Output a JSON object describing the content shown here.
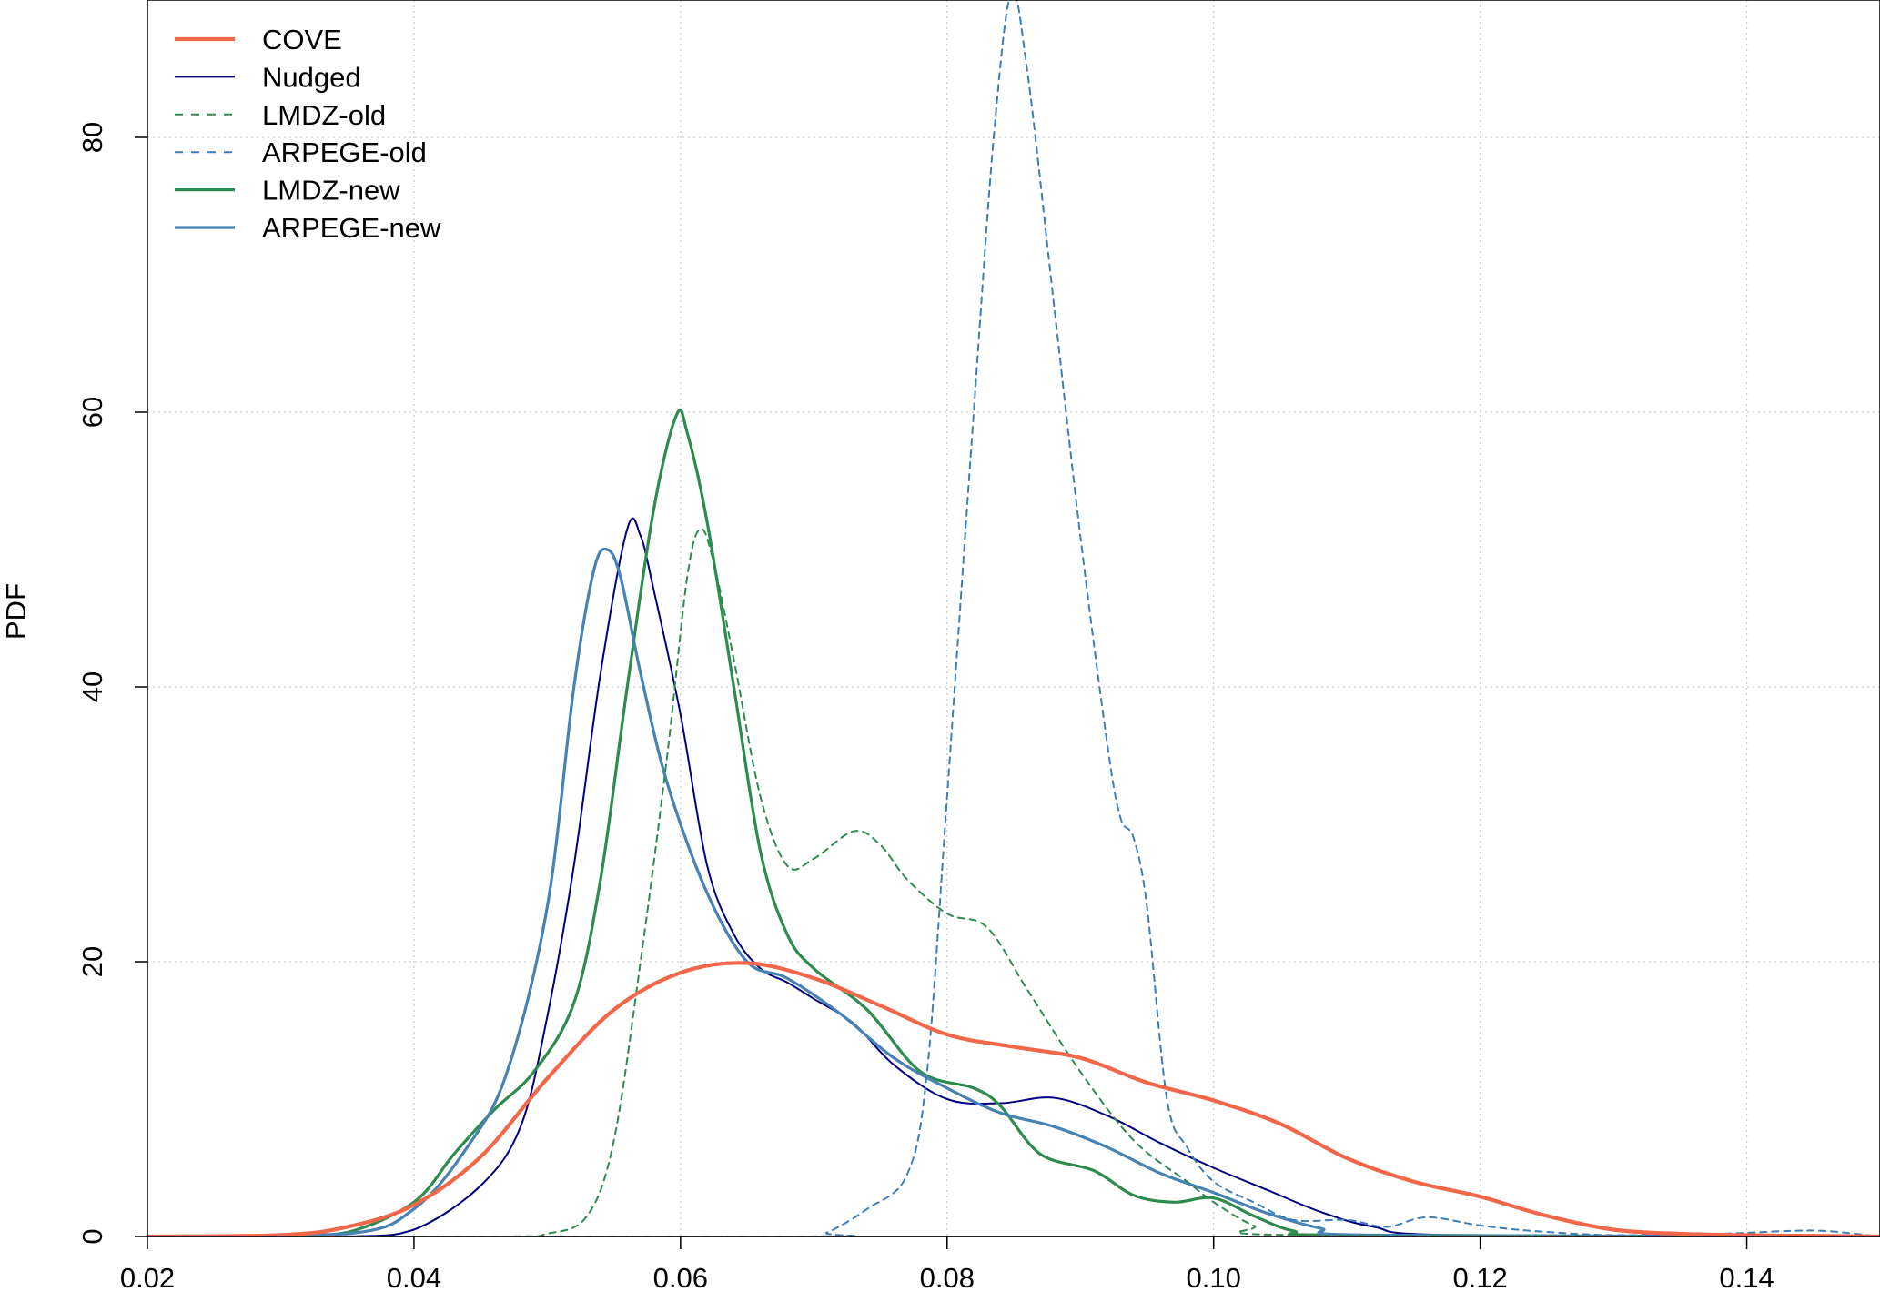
{
  "chart_data": {
    "type": "line",
    "title": "",
    "xlabel": "",
    "ylabel": "PDF",
    "xlim": [
      0.02,
      0.15
    ],
    "ylim": [
      0,
      90
    ],
    "x_ticks": [
      0.02,
      0.04,
      0.06,
      0.08,
      0.1,
      0.12,
      0.14
    ],
    "x_tick_labels": [
      "0.02",
      "0.04",
      "0.06",
      "0.08",
      "0.10",
      "0.12",
      "0.14"
    ],
    "y_ticks": [
      0,
      20,
      40,
      60,
      80
    ],
    "y_tick_labels": [
      "0",
      "20",
      "40",
      "60",
      "80"
    ],
    "grid": true,
    "legend_position": "top-left",
    "series": [
      {
        "name": "COVE",
        "color": "#F2674A",
        "style": "solid",
        "weight": "thick",
        "points": [
          [
            0.02,
            0
          ],
          [
            0.03,
            0.1
          ],
          [
            0.035,
            0.7
          ],
          [
            0.04,
            2.3
          ],
          [
            0.045,
            5.8
          ],
          [
            0.05,
            11.5
          ],
          [
            0.055,
            16.5
          ],
          [
            0.06,
            19.2
          ],
          [
            0.065,
            19.9
          ],
          [
            0.07,
            18.8
          ],
          [
            0.075,
            16.8
          ],
          [
            0.08,
            14.7
          ],
          [
            0.085,
            13.8
          ],
          [
            0.09,
            13.0
          ],
          [
            0.095,
            11.2
          ],
          [
            0.1,
            9.9
          ],
          [
            0.105,
            8.2
          ],
          [
            0.11,
            5.7
          ],
          [
            0.115,
            4.0
          ],
          [
            0.12,
            2.9
          ],
          [
            0.125,
            1.5
          ],
          [
            0.13,
            0.5
          ],
          [
            0.135,
            0.2
          ],
          [
            0.14,
            0.1
          ],
          [
            0.145,
            0.05
          ],
          [
            0.15,
            0
          ]
        ]
      },
      {
        "name": "Nudged",
        "color": "#00007F",
        "style": "solid",
        "weight": "thin",
        "points": [
          [
            0.02,
            0
          ],
          [
            0.035,
            0
          ],
          [
            0.04,
            0.5
          ],
          [
            0.045,
            3.7
          ],
          [
            0.048,
            8.0
          ],
          [
            0.05,
            16.0
          ],
          [
            0.052,
            27.0
          ],
          [
            0.054,
            41.0
          ],
          [
            0.056,
            51.5
          ],
          [
            0.057,
            51.0
          ],
          [
            0.058,
            47.0
          ],
          [
            0.06,
            38.0
          ],
          [
            0.062,
            27.0
          ],
          [
            0.064,
            22.0
          ],
          [
            0.066,
            19.5
          ],
          [
            0.068,
            18.5
          ],
          [
            0.07,
            17.3
          ],
          [
            0.073,
            15.5
          ],
          [
            0.076,
            12.5
          ],
          [
            0.08,
            10.0
          ],
          [
            0.084,
            9.7
          ],
          [
            0.088,
            10.1
          ],
          [
            0.092,
            8.8
          ],
          [
            0.096,
            6.8
          ],
          [
            0.1,
            5.0
          ],
          [
            0.104,
            3.4
          ],
          [
            0.108,
            1.8
          ],
          [
            0.112,
            0.7
          ],
          [
            0.118,
            0.1
          ],
          [
            0.15,
            0
          ]
        ]
      },
      {
        "name": "LMDZ-old",
        "color": "#2E8B4E",
        "style": "dashed",
        "weight": "thin",
        "points": [
          [
            0.02,
            0
          ],
          [
            0.046,
            0
          ],
          [
            0.05,
            0.2
          ],
          [
            0.053,
            1.5
          ],
          [
            0.055,
            7.0
          ],
          [
            0.057,
            20.0
          ],
          [
            0.059,
            35.0
          ],
          [
            0.0605,
            48.0
          ],
          [
            0.0615,
            51.5
          ],
          [
            0.0625,
            49.0
          ],
          [
            0.064,
            42.0
          ],
          [
            0.066,
            32.0
          ],
          [
            0.068,
            27.0
          ],
          [
            0.07,
            27.5
          ],
          [
            0.073,
            29.5
          ],
          [
            0.075,
            28.5
          ],
          [
            0.077,
            26.0
          ],
          [
            0.08,
            23.5
          ],
          [
            0.083,
            22.5
          ],
          [
            0.086,
            18.0
          ],
          [
            0.09,
            12.0
          ],
          [
            0.094,
            7.0
          ],
          [
            0.098,
            4.0
          ],
          [
            0.1,
            2.5
          ],
          [
            0.103,
            0.8
          ],
          [
            0.106,
            0.1
          ],
          [
            0.15,
            0
          ]
        ]
      },
      {
        "name": "ARPEGE-old",
        "color": "#3E7EB8",
        "style": "dashed",
        "weight": "thin",
        "points": [
          [
            0.02,
            0
          ],
          [
            0.069,
            0
          ],
          [
            0.071,
            0.3
          ],
          [
            0.074,
            2.0
          ],
          [
            0.077,
            4.5
          ],
          [
            0.0785,
            12.0
          ],
          [
            0.08,
            32.0
          ],
          [
            0.082,
            60.0
          ],
          [
            0.0835,
            80.0
          ],
          [
            0.0848,
            90.5
          ],
          [
            0.086,
            85.0
          ],
          [
            0.088,
            68.0
          ],
          [
            0.09,
            51.0
          ],
          [
            0.092,
            36.0
          ],
          [
            0.093,
            30.5
          ],
          [
            0.094,
            29.0
          ],
          [
            0.095,
            24.0
          ],
          [
            0.0965,
            10.0
          ],
          [
            0.098,
            6.5
          ],
          [
            0.1,
            4.0
          ],
          [
            0.103,
            2.5
          ],
          [
            0.106,
            1.2
          ],
          [
            0.11,
            1.2
          ],
          [
            0.113,
            0.7
          ],
          [
            0.116,
            1.4
          ],
          [
            0.12,
            0.8
          ],
          [
            0.124,
            0.4
          ],
          [
            0.13,
            0.1
          ],
          [
            0.138,
            0.2
          ],
          [
            0.143,
            0.4
          ],
          [
            0.146,
            0.4
          ],
          [
            0.15,
            0
          ]
        ]
      },
      {
        "name": "LMDZ-new",
        "color": "#2E8B4E",
        "style": "solid",
        "weight": "medium",
        "points": [
          [
            0.02,
            0
          ],
          [
            0.03,
            0
          ],
          [
            0.035,
            0.3
          ],
          [
            0.04,
            2.5
          ],
          [
            0.043,
            6.0
          ],
          [
            0.046,
            9.2
          ],
          [
            0.049,
            12.0
          ],
          [
            0.052,
            17.0
          ],
          [
            0.054,
            26.0
          ],
          [
            0.056,
            40.0
          ],
          [
            0.058,
            53.0
          ],
          [
            0.0597,
            59.8
          ],
          [
            0.0605,
            58.5
          ],
          [
            0.062,
            52.0
          ],
          [
            0.064,
            40.0
          ],
          [
            0.066,
            28.0
          ],
          [
            0.068,
            22.0
          ],
          [
            0.07,
            19.5
          ],
          [
            0.074,
            16.5
          ],
          [
            0.078,
            12.0
          ],
          [
            0.082,
            10.8
          ],
          [
            0.084,
            9.5
          ],
          [
            0.087,
            6.0
          ],
          [
            0.091,
            4.8
          ],
          [
            0.094,
            3.0
          ],
          [
            0.097,
            2.5
          ],
          [
            0.1,
            2.8
          ],
          [
            0.103,
            1.5
          ],
          [
            0.106,
            0.4
          ],
          [
            0.11,
            0.1
          ],
          [
            0.15,
            0
          ]
        ]
      },
      {
        "name": "ARPEGE-new",
        "color": "#4682B4",
        "style": "solid",
        "weight": "medium",
        "points": [
          [
            0.02,
            0
          ],
          [
            0.035,
            0.2
          ],
          [
            0.04,
            2.0
          ],
          [
            0.044,
            6.5
          ],
          [
            0.047,
            12.0
          ],
          [
            0.05,
            24.0
          ],
          [
            0.052,
            40.0
          ],
          [
            0.0535,
            48.5
          ],
          [
            0.0545,
            50.0
          ],
          [
            0.0555,
            48.0
          ],
          [
            0.057,
            41.0
          ],
          [
            0.059,
            33.0
          ],
          [
            0.062,
            25.0
          ],
          [
            0.065,
            20.0
          ],
          [
            0.068,
            18.8
          ],
          [
            0.072,
            16.2
          ],
          [
            0.076,
            13.0
          ],
          [
            0.08,
            10.8
          ],
          [
            0.084,
            9.0
          ],
          [
            0.088,
            8.0
          ],
          [
            0.092,
            6.5
          ],
          [
            0.096,
            4.6
          ],
          [
            0.1,
            3.2
          ],
          [
            0.104,
            1.7
          ],
          [
            0.108,
            0.6
          ],
          [
            0.112,
            0.1
          ],
          [
            0.15,
            0
          ]
        ]
      }
    ]
  }
}
